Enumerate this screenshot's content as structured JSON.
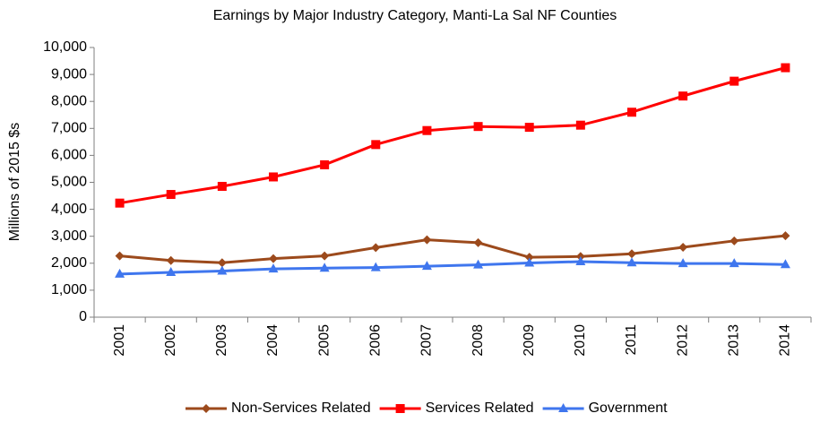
{
  "chart_data": {
    "type": "line",
    "title": "Earnings by Major Industry Category, Manti-La Sal NF Counties",
    "y_label": "Millions of 2015 $s",
    "categories": [
      "2001",
      "2002",
      "2003",
      "2004",
      "2005",
      "2006",
      "2007",
      "2008",
      "2009",
      "2010",
      "2011",
      "2012",
      "2013",
      "2014"
    ],
    "series": [
      {
        "name": "Non-Services Related",
        "color": "#9c4a1c",
        "marker": "diamond",
        "values": [
          2270,
          2100,
          2020,
          2170,
          2270,
          2580,
          2870,
          2760,
          2220,
          2250,
          2350,
          2590,
          2830,
          3020
        ]
      },
      {
        "name": "Services Related",
        "color": "#ff0000",
        "marker": "square",
        "values": [
          4230,
          4550,
          4850,
          5200,
          5650,
          6400,
          6920,
          7070,
          7040,
          7120,
          7600,
          8200,
          8750,
          9250
        ]
      },
      {
        "name": "Government",
        "color": "#3f76ee",
        "marker": "triangle",
        "values": [
          1600,
          1660,
          1710,
          1790,
          1820,
          1840,
          1890,
          1940,
          2010,
          2060,
          2020,
          1990,
          1990,
          1950
        ]
      }
    ],
    "ylim": [
      0,
      10000
    ],
    "yticks": [
      0,
      {
        "value": 1000,
        "label": "1,000"
      },
      {
        "value": 2000,
        "label": "2,000"
      },
      {
        "value": 3000,
        "label": "3,000"
      },
      {
        "value": 4000,
        "label": "4,000"
      },
      {
        "value": 5000,
        "label": "5,000"
      },
      {
        "value": 6000,
        "label": "6,000"
      },
      {
        "value": 7000,
        "label": "7,000"
      },
      {
        "value": 8000,
        "label": "8,000"
      },
      {
        "value": 9000,
        "label": "9,000"
      },
      {
        "value": 10000,
        "label": "10,000"
      }
    ],
    "grid": false,
    "legend": "bottom"
  }
}
